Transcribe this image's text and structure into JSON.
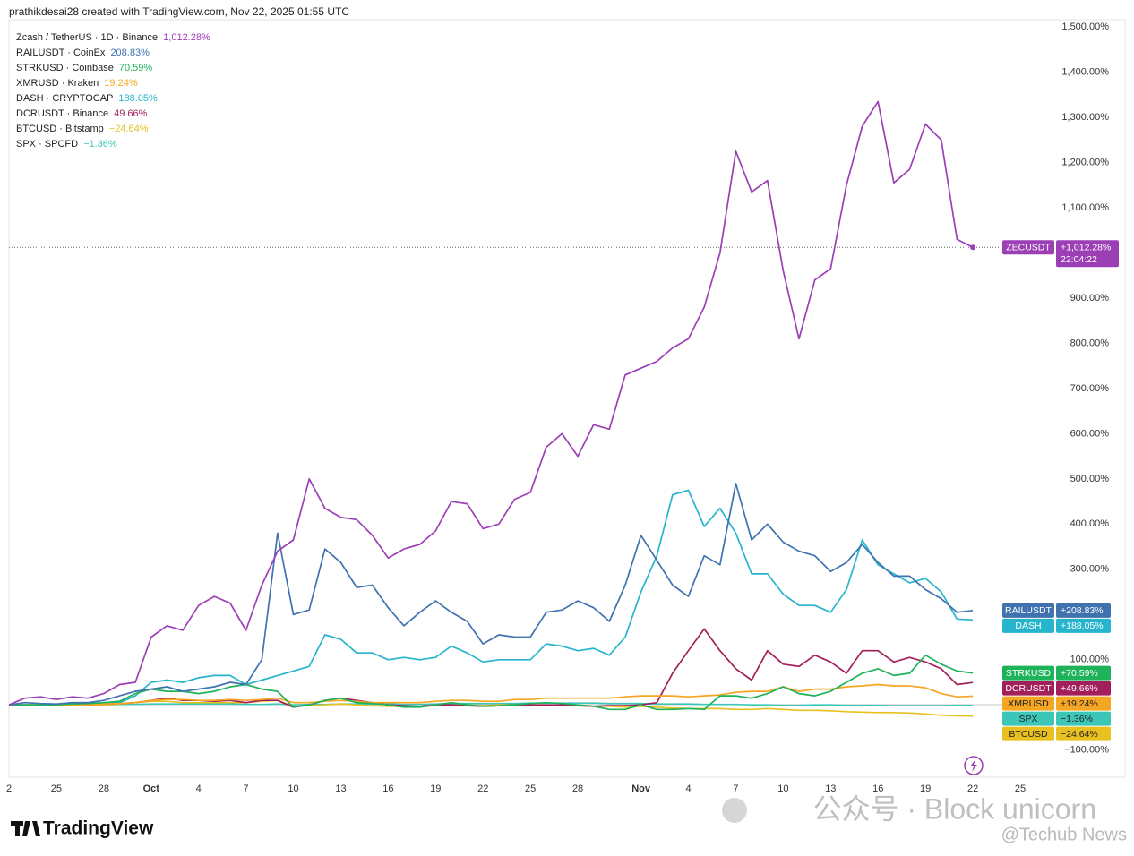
{
  "header": "prathikdesai28 created with TradingView.com, Nov 22, 2025 01:55 UTC",
  "footer": {
    "logo": "TradingView",
    "watermark": "公众号 · Block unicorn",
    "watermark2": "@Techub News"
  },
  "chart_data": {
    "type": "line",
    "categories": [
      "2",
      null,
      null,
      "25",
      null,
      null,
      "28",
      null,
      null,
      "Oct",
      null,
      null,
      "4",
      null,
      null,
      "7",
      null,
      null,
      "10",
      null,
      null,
      "13",
      null,
      null,
      "16",
      null,
      null,
      "19",
      null,
      null,
      "22",
      null,
      null,
      "25",
      null,
      null,
      "28",
      null,
      null,
      null,
      "Nov",
      null,
      null,
      "4",
      null,
      null,
      "7",
      null,
      null,
      "10",
      null,
      null,
      "13",
      null,
      null,
      "16",
      null,
      null,
      "19",
      null,
      null,
      "22",
      null,
      null,
      "25"
    ],
    "ylim": [
      -160,
      1516
    ],
    "yticks": [
      {
        "value": -100,
        "label": "−100.00%"
      },
      {
        "value": 100,
        "label": "100.00%"
      },
      {
        "value": 200,
        "label": "200.00%"
      },
      {
        "value": 300,
        "label": "300.00%"
      },
      {
        "value": 400,
        "label": "400.00%"
      },
      {
        "value": 500,
        "label": "500.00%"
      },
      {
        "value": 600,
        "label": "600.00%"
      },
      {
        "value": 700,
        "label": "700.00%"
      },
      {
        "value": 800,
        "label": "800.00%"
      },
      {
        "value": 900,
        "label": "900.00%"
      },
      {
        "value": 1000,
        "label": "1,000.00%"
      },
      {
        "value": 1100,
        "label": "1,100.00%"
      },
      {
        "value": 1200,
        "label": "1,200.00%"
      },
      {
        "value": 1300,
        "label": "1,300.00%"
      },
      {
        "value": 1400,
        "label": "1,400.00%"
      },
      {
        "value": 1500,
        "label": "1,500.00%"
      }
    ],
    "grid": false,
    "legend": "top-left",
    "series": [
      {
        "name": "Zcash / TetherUS · 1D · Binance",
        "legend_value": "1,012.28%",
        "tag": "ZECUSDT",
        "tag_value": "+1,012.28%",
        "countdown": "22:04:22",
        "color": "#9c3fb5",
        "values": [
          0,
          15,
          18,
          12,
          18,
          15,
          25,
          45,
          50,
          150,
          175,
          165,
          220,
          240,
          225,
          165,
          265,
          340,
          365,
          500,
          435,
          415,
          410,
          375,
          325,
          345,
          355,
          385,
          450,
          445,
          390,
          400,
          455,
          470,
          570,
          600,
          550,
          620,
          610,
          730,
          745,
          760,
          790,
          810,
          880,
          1000,
          1225,
          1135,
          1160,
          960,
          810,
          940,
          965,
          1150,
          1280,
          1335,
          1155,
          1185,
          1285,
          1250,
          1030,
          1012.28,
          null,
          null,
          null
        ]
      },
      {
        "name": "RAILUSDT · CoinEx",
        "legend_value": "208.83%",
        "tag": "RAILUSDT",
        "tag_value": "+208.83%",
        "color": "#3f72af",
        "values": [
          0,
          5,
          3,
          2,
          5,
          5,
          10,
          20,
          30,
          35,
          40,
          30,
          35,
          40,
          50,
          45,
          100,
          380,
          200,
          210,
          345,
          315,
          260,
          265,
          215,
          175,
          205,
          230,
          205,
          185,
          135,
          155,
          150,
          150,
          205,
          210,
          230,
          215,
          185,
          265,
          375,
          320,
          265,
          240,
          330,
          310,
          490,
          365,
          400,
          360,
          340,
          330,
          295,
          315,
          355,
          315,
          285,
          285,
          255,
          235,
          205,
          208.83,
          null,
          null,
          null
        ]
      },
      {
        "name": "STRKUSD · Coinbase",
        "legend_value": "70.59%",
        "tag": "STRKUSD",
        "tag_value": "+70.59%",
        "color": "#1eb35a",
        "values": [
          0,
          0,
          0,
          0,
          2,
          3,
          5,
          8,
          25,
          35,
          30,
          30,
          25,
          30,
          40,
          45,
          35,
          30,
          -5,
          0,
          10,
          15,
          5,
          3,
          0,
          -5,
          -5,
          0,
          5,
          0,
          -3,
          -2,
          0,
          3,
          5,
          3,
          0,
          -3,
          -10,
          -10,
          0,
          -10,
          -10,
          -8,
          -10,
          20,
          20,
          15,
          25,
          40,
          25,
          20,
          30,
          50,
          70,
          80,
          65,
          70,
          110,
          90,
          75,
          70.59,
          null,
          null,
          null
        ]
      },
      {
        "name": "XMRUSD · Kraken",
        "legend_value": "19.24%",
        "tag": "XMRUSD",
        "tag_value": "+19.24%",
        "color": "#f5a623",
        "values": [
          0,
          0,
          0,
          0,
          0,
          0,
          2,
          3,
          5,
          10,
          12,
          12,
          10,
          10,
          12,
          10,
          12,
          15,
          5,
          5,
          8,
          10,
          8,
          5,
          5,
          5,
          5,
          8,
          10,
          10,
          8,
          8,
          12,
          12,
          15,
          15,
          15,
          15,
          15,
          18,
          20,
          20,
          20,
          18,
          20,
          22,
          28,
          30,
          30,
          40,
          30,
          35,
          35,
          40,
          42,
          45,
          42,
          42,
          38,
          25,
          18,
          19.24,
          null,
          null,
          null
        ]
      },
      {
        "name": "DASH · CRYPTOCAP",
        "legend_value": "188.05%",
        "tag": "DASH",
        "tag_value": "+188.05%",
        "color": "#26b5cc",
        "values": [
          0,
          0,
          -2,
          0,
          2,
          3,
          5,
          5,
          20,
          50,
          55,
          50,
          60,
          65,
          65,
          45,
          55,
          65,
          75,
          85,
          155,
          145,
          115,
          115,
          100,
          105,
          100,
          105,
          130,
          115,
          95,
          100,
          100,
          100,
          135,
          130,
          120,
          125,
          110,
          150,
          250,
          330,
          465,
          475,
          395,
          435,
          380,
          290,
          290,
          245,
          220,
          220,
          205,
          255,
          365,
          310,
          290,
          270,
          280,
          250,
          190,
          188.05,
          null,
          null,
          null
        ]
      },
      {
        "name": "DCRUSDT · Binance",
        "legend_value": "49.66%",
        "tag": "DCRUSDT",
        "tag_value": "+49.66%",
        "color": "#a31f5c",
        "values": [
          0,
          0,
          0,
          0,
          0,
          0,
          2,
          3,
          5,
          10,
          15,
          10,
          10,
          8,
          10,
          5,
          10,
          10,
          -5,
          0,
          10,
          15,
          10,
          5,
          0,
          -2,
          -3,
          0,
          0,
          -2,
          -3,
          -2,
          0,
          0,
          0,
          0,
          -2,
          -3,
          -2,
          -2,
          0,
          5,
          70,
          120,
          168,
          120,
          80,
          55,
          120,
          90,
          85,
          110,
          95,
          70,
          120,
          120,
          95,
          105,
          95,
          80,
          45,
          49.66,
          null,
          null,
          null
        ]
      },
      {
        "name": "BTCUSD · Bitstamp",
        "legend_value": "−24.64%",
        "tag": "BTCUSD",
        "tag_value": "−24.64%",
        "color": "#e8c020",
        "values": [
          0,
          0,
          0,
          0,
          0,
          0,
          0,
          2,
          5,
          8,
          8,
          5,
          5,
          5,
          5,
          5,
          8,
          10,
          -3,
          -2,
          0,
          2,
          0,
          -2,
          -3,
          -3,
          -3,
          -2,
          0,
          0,
          -2,
          0,
          0,
          0,
          0,
          -2,
          -2,
          -3,
          -3,
          -5,
          -3,
          -5,
          -7,
          -8,
          -8,
          -8,
          -10,
          -10,
          -8,
          -10,
          -12,
          -12,
          -13,
          -15,
          -16,
          -17,
          -17,
          -18,
          -20,
          -23,
          -24,
          -24.64,
          null,
          null,
          null
        ]
      },
      {
        "name": "SPX · SPCFD",
        "legend_value": "−1.36%",
        "tag": "SPX",
        "tag_value": "−1.36%",
        "color": "#3cc6b8",
        "values": [
          0,
          0,
          0,
          0,
          0,
          0,
          0,
          1,
          1,
          2,
          2,
          2,
          2,
          2,
          2,
          1,
          1,
          2,
          0,
          1,
          1,
          2,
          2,
          2,
          2,
          1,
          1,
          2,
          3,
          3,
          3,
          3,
          3,
          4,
          4,
          4,
          4,
          4,
          3,
          3,
          3,
          2,
          2,
          2,
          1,
          1,
          1,
          0,
          0,
          -1,
          -1,
          0,
          0,
          -1,
          -1,
          -1,
          -2,
          -2,
          -2,
          -2,
          -1,
          -1.36,
          null,
          null,
          null
        ]
      }
    ]
  }
}
